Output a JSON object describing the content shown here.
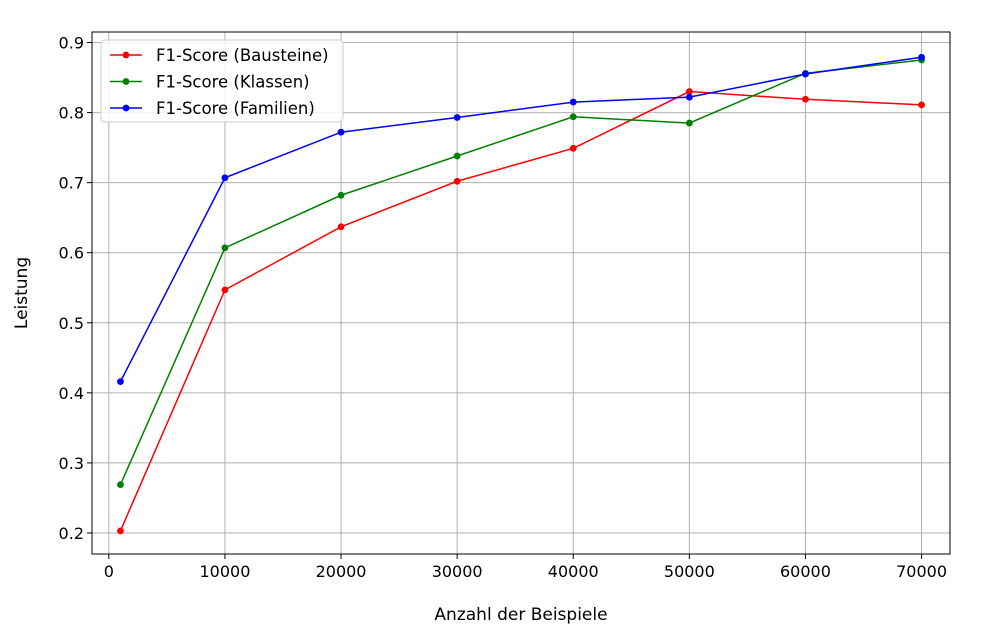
{
  "chart_data": {
    "type": "line",
    "title": "",
    "xlabel": "Anzahl der Beispiele",
    "ylabel": "Leistung",
    "x": [
      1000,
      10000,
      20000,
      30000,
      40000,
      50000,
      60000,
      70000
    ],
    "xlim": [
      -1450,
      72450
    ],
    "ylim": [
      0.17,
      0.915
    ],
    "xticks": [
      0,
      10000,
      20000,
      30000,
      40000,
      50000,
      60000,
      70000
    ],
    "xtick_labels": [
      "0",
      "10000",
      "20000",
      "30000",
      "40000",
      "50000",
      "60000",
      "70000"
    ],
    "yticks": [
      0.2,
      0.3,
      0.4,
      0.5,
      0.6,
      0.7,
      0.8,
      0.9
    ],
    "ytick_labels": [
      "0.2",
      "0.3",
      "0.4",
      "0.5",
      "0.6",
      "0.7",
      "0.8",
      "0.9"
    ],
    "grid": true,
    "legend_position": "top-left",
    "series": [
      {
        "name": "F1-Score (Bausteine)",
        "color": "#ff0000",
        "values": [
          0.203,
          0.547,
          0.637,
          0.702,
          0.749,
          0.83,
          0.819,
          0.811
        ]
      },
      {
        "name": "F1-Score (Klassen)",
        "color": "#008000",
        "values": [
          0.269,
          0.607,
          0.682,
          0.738,
          0.794,
          0.785,
          0.856,
          0.875
        ]
      },
      {
        "name": "F1-Score (Familien)",
        "color": "#0000ff",
        "values": [
          0.416,
          0.707,
          0.772,
          0.793,
          0.815,
          0.822,
          0.855,
          0.879
        ]
      }
    ]
  }
}
